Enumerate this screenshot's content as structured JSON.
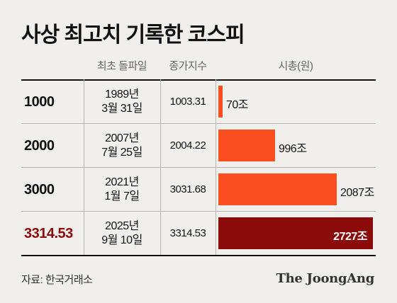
{
  "title": "사상 최고치 기록한 코스피",
  "columns": {
    "first_breakthrough": "최초 돌파일",
    "index": "종가지수",
    "market_cap": "시총(원)"
  },
  "rows": [
    {
      "level": "1000",
      "date_line1": "1989년",
      "date_line2": "3월 31일",
      "index": "1003.31",
      "cap_label": "70조"
    },
    {
      "level": "2000",
      "date_line1": "2007년",
      "date_line2": "7월 25일",
      "index": "2004.22",
      "cap_label": "996조"
    },
    {
      "level": "3000",
      "date_line1": "2021년",
      "date_line2": "1월 7일",
      "index": "3031.68",
      "cap_label": "2087조"
    },
    {
      "level": "3314.53",
      "date_line1": "2025년",
      "date_line2": "9월 10일",
      "index": "3314.53",
      "cap_label": "2727조"
    }
  ],
  "chart_data": {
    "type": "bar",
    "orientation": "horizontal",
    "categories": [
      "1000",
      "2000",
      "3000",
      "3314.53"
    ],
    "values": [
      70,
      996,
      2087,
      2727
    ],
    "unit": "조",
    "ylabel": "시총(원)",
    "colors": [
      "#fb4f21",
      "#fb4f21",
      "#fb4f21",
      "#8b0a0a"
    ],
    "xlim": [
      0,
      2727
    ]
  },
  "colors": {
    "bar": "#fb4f21",
    "bar_highlight": "#8b0a0a",
    "highlight_text": "#8b0a0a",
    "background": "#f0efec"
  },
  "source": "자료: 한국거래소",
  "logo": "The JoongAng"
}
